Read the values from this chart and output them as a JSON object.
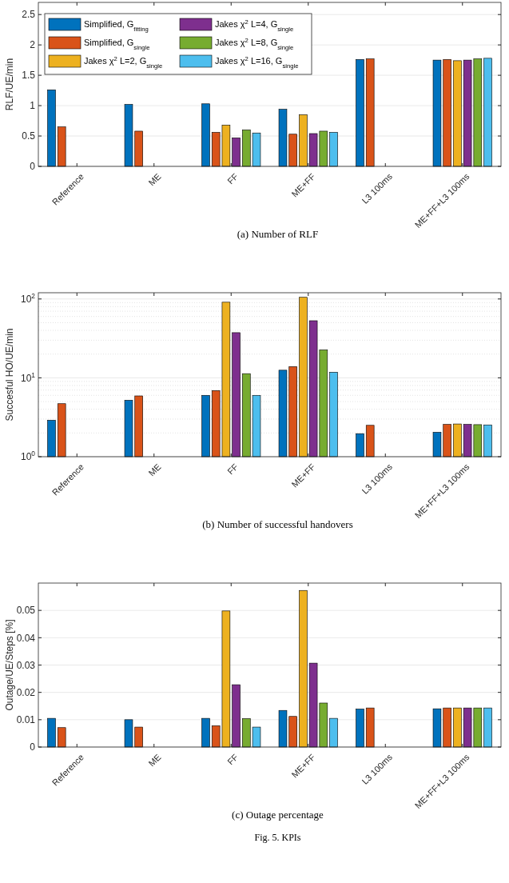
{
  "chart_data": [
    {
      "type": "bar",
      "title": "(a) Number of RLF",
      "ylabel": "RLF/UE/min",
      "categories": [
        "Reference",
        "ME",
        "FF",
        "ME+FF",
        "L3 100ms",
        "ME+FF+L3 100ms"
      ],
      "ylim": [
        0,
        2.7
      ],
      "yticks": [
        0,
        0.5,
        1,
        1.5,
        2,
        2.5
      ],
      "grid": "y",
      "legend": "top left",
      "series": [
        {
          "name": "Simplified, G$_{fitting}$",
          "color": "#0072bd",
          "values": [
            1.26,
            1.02,
            1.03,
            0.94,
            1.76,
            1.75
          ]
        },
        {
          "name": "Simplified, G$_{single}$",
          "color": "#d95319",
          "values": [
            0.65,
            0.58,
            0.56,
            0.53,
            1.77,
            1.76
          ]
        },
        {
          "name": "Jakes χ$^{2}$ L=2, G$_{single}$",
          "color": "#edb120",
          "values": [
            null,
            null,
            0.68,
            0.85,
            null,
            1.74
          ]
        },
        {
          "name": "Jakes χ$^{2}$ L=4, G$_{single}$",
          "color": "#7e2f8e",
          "values": [
            null,
            null,
            0.47,
            0.54,
            null,
            1.75
          ]
        },
        {
          "name": "Jakes χ$^{2}$ L=8, G$_{single}$",
          "color": "#77ac30",
          "values": [
            null,
            null,
            0.6,
            0.58,
            null,
            1.77
          ]
        },
        {
          "name": "Jakes χ$^{2}$ L=16, G$_{single}$",
          "color": "#4dbeee",
          "values": [
            null,
            null,
            0.55,
            0.56,
            null,
            1.78
          ]
        }
      ]
    },
    {
      "type": "bar",
      "title": "(b) Number of successful handovers",
      "ylabel": "Succesful HO/UE/min",
      "categories": [
        "Reference",
        "ME",
        "FF",
        "ME+FF",
        "L3 100ms",
        "ME+FF+L3 100ms"
      ],
      "log": true,
      "ylim": [
        1,
        120
      ],
      "yticks": [
        {
          "value": 1,
          "label": "10$^{0}$"
        },
        {
          "value": 10,
          "label": "10$^{1}$"
        },
        {
          "value": 100,
          "label": "10$^{2}$"
        }
      ],
      "grid": "y",
      "series": [
        {
          "color": "#0072bd",
          "values": [
            2.9,
            5.2,
            6.0,
            12.5,
            1.96,
            2.04
          ]
        },
        {
          "color": "#d95319",
          "values": [
            4.7,
            5.9,
            6.9,
            13.9,
            2.5,
            2.57
          ]
        },
        {
          "color": "#edb120",
          "values": [
            null,
            null,
            91,
            105,
            null,
            2.6
          ]
        },
        {
          "color": "#7e2f8e",
          "values": [
            null,
            null,
            37.4,
            53,
            null,
            2.57
          ]
        },
        {
          "color": "#77ac30",
          "values": [
            null,
            null,
            11.3,
            22.6,
            null,
            2.55
          ]
        },
        {
          "color": "#4dbeee",
          "values": [
            null,
            null,
            6.0,
            11.8,
            null,
            2.53
          ]
        }
      ]
    },
    {
      "type": "bar",
      "title": "(c) Outage percentage",
      "ylabel": "Outage/UE/Steps [%]",
      "categories": [
        "Reference",
        "ME",
        "FF",
        "ME+FF",
        "L3 100ms",
        "ME+FF+L3 100ms"
      ],
      "ylim": [
        0,
        0.06
      ],
      "yticks": [
        0,
        0.01,
        0.02,
        0.03,
        0.04,
        0.05
      ],
      "grid": "y",
      "annotations": [
        "Fig. 5.  KPIs"
      ],
      "series": [
        {
          "color": "#0072bd",
          "values": [
            0.0105,
            0.01,
            0.0105,
            0.0134,
            0.0139,
            0.014
          ]
        },
        {
          "color": "#d95319",
          "values": [
            0.0071,
            0.0073,
            0.0078,
            0.0112,
            0.0143,
            0.0143
          ]
        },
        {
          "color": "#edb120",
          "values": [
            null,
            null,
            0.0498,
            0.0573,
            null,
            0.0143
          ]
        },
        {
          "color": "#7e2f8e",
          "values": [
            null,
            null,
            0.0228,
            0.0307,
            null,
            0.0143
          ]
        },
        {
          "color": "#77ac30",
          "values": [
            null,
            null,
            0.0104,
            0.0161,
            null,
            0.0143
          ]
        },
        {
          "color": "#4dbeee",
          "values": [
            null,
            null,
            0.0073,
            0.0105,
            null,
            0.0143
          ]
        }
      ]
    }
  ]
}
